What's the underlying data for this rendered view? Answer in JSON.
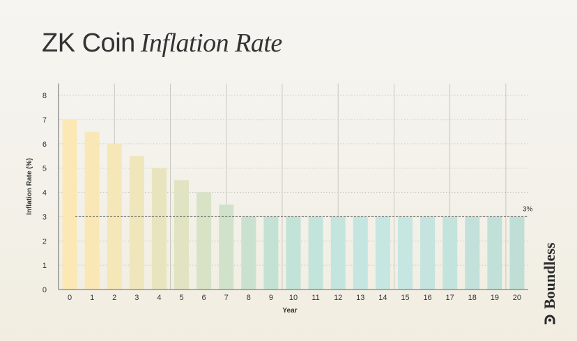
{
  "header": {
    "title_main": "ZK Coin",
    "title_italic": "Inflation Rate"
  },
  "brand": {
    "name": "Boundless",
    "icon": "boundless-logo-icon"
  },
  "chart_data": {
    "type": "bar",
    "title": "ZK Coin Inflation Rate",
    "xlabel": "Year",
    "ylabel": "Inflation Rate (%)",
    "categories": [
      "0",
      "1",
      "2",
      "3",
      "4",
      "5",
      "6",
      "7",
      "8",
      "9",
      "10",
      "11",
      "12",
      "13",
      "14",
      "15",
      "16",
      "17",
      "18",
      "19",
      "20"
    ],
    "values": [
      7,
      6.5,
      6,
      5.5,
      5,
      4.5,
      4,
      3.5,
      3,
      3,
      3,
      3,
      3,
      3,
      3,
      3,
      3,
      3,
      3,
      3,
      3
    ],
    "ylim": [
      0,
      8
    ],
    "yticks": [
      "0",
      "1",
      "2",
      "3",
      "4",
      "5",
      "6",
      "7",
      "8"
    ],
    "grid": true,
    "reference_line": {
      "value": 3,
      "label": "3%"
    },
    "bar_colors": [
      "#fbe8b4",
      "#f9e8b6",
      "#f5e7b8",
      "#efe6bb",
      "#e8e5be",
      "#e0e4c2",
      "#d8e3c6",
      "#d0e2ca",
      "#c9e2cf",
      "#c4e2d3",
      "#c2e3d7",
      "#c2e4da",
      "#c3e5dd",
      "#c5e6e0",
      "#c6e6e1",
      "#c6e6e1",
      "#c5e4df",
      "#c3e3dd",
      "#c1e1da",
      "#c0e0d8",
      "#bfdfd6"
    ]
  }
}
